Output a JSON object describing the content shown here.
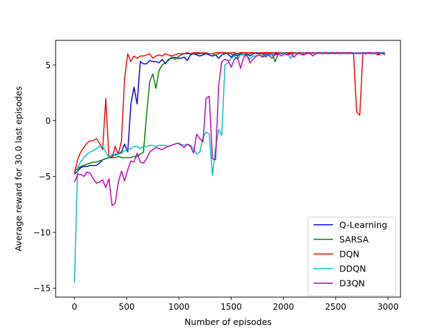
{
  "chart_data": {
    "type": "line",
    "title": "",
    "xlabel": "Number of episodes",
    "ylabel": "Average reward for 30.0 last episodes",
    "xlim": [
      -180,
      3120
    ],
    "ylim": [
      -15.8,
      7.2
    ],
    "xticks": [
      0,
      500,
      1000,
      1500,
      2000,
      2500,
      3000
    ],
    "yticks": [
      -15,
      -10,
      -5,
      0,
      5
    ],
    "yticklabels": [
      "−15",
      "−10",
      "−5",
      "0",
      "5"
    ],
    "grid": false,
    "legend_position": "lower-right",
    "series": [
      {
        "name": "Q-Learning",
        "color": "#0000ff",
        "x": [
          0,
          30,
          60,
          90,
          120,
          150,
          180,
          210,
          240,
          270,
          300,
          330,
          360,
          390,
          420,
          450,
          480,
          510,
          540,
          570,
          600,
          630,
          660,
          690,
          720,
          750,
          780,
          810,
          840,
          870,
          900,
          930,
          960,
          990,
          1020,
          1050,
          1080,
          1110,
          1140,
          1170,
          1200,
          1230,
          1260,
          1290,
          1320,
          1350,
          1380,
          1410,
          1440,
          1470,
          1500,
          1530,
          1560,
          1590,
          1620,
          1650,
          1680,
          1710,
          1740,
          1770,
          1800,
          1830,
          1860,
          1890,
          1920,
          1950,
          1980,
          2010,
          2040,
          2070,
          2100,
          2130,
          2160,
          2190,
          2220,
          2250,
          2280,
          2310,
          2340,
          2370,
          2400,
          2430,
          2460,
          2490,
          2520,
          2550,
          2580,
          2610,
          2640,
          2670,
          2700,
          2730,
          2760,
          2790,
          2820,
          2850,
          2880,
          2910,
          2940,
          2970
        ],
        "y": [
          -4.8,
          -4.5,
          -4.2,
          -4.1,
          -4.1,
          -4.0,
          -4.0,
          -4.0,
          -3.8,
          -3.5,
          -3.4,
          -3.3,
          -3.2,
          -3.0,
          -3.0,
          -2.8,
          -2.1,
          -2.8,
          1.5,
          3.0,
          1.5,
          5.3,
          5.1,
          5.1,
          5.4,
          5.3,
          5.3,
          5.2,
          5.5,
          5.1,
          5.5,
          5.6,
          5.7,
          5.6,
          5.6,
          5.7,
          5.4,
          5.9,
          6.0,
          5.9,
          5.8,
          5.9,
          6.0,
          5.9,
          5.8,
          5.9,
          5.6,
          5.9,
          6.0,
          6.0,
          5.7,
          6.0,
          5.8,
          6.0,
          5.9,
          6.0,
          5.8,
          6.0,
          6.1,
          6.0,
          6.0,
          6.0,
          6.1,
          5.9,
          6.0,
          6.1,
          6.0,
          6.1,
          6.0,
          6.1,
          6.0,
          6.1,
          6.0,
          6.1,
          6.0,
          6.1,
          6.0,
          6.1,
          6.0,
          6.1,
          6.0,
          6.1,
          6.0,
          6.1,
          6.0,
          6.1,
          6.0,
          6.1,
          6.0,
          6.1,
          6.0,
          6.1,
          6.0,
          6.1,
          6.0,
          6.1,
          6.0,
          6.1,
          6.1,
          5.9
        ]
      },
      {
        "name": "SARSA",
        "color": "#008000",
        "x": [
          0,
          30,
          60,
          90,
          120,
          150,
          180,
          210,
          240,
          270,
          300,
          330,
          360,
          390,
          420,
          450,
          480,
          510,
          540,
          570,
          600,
          630,
          660,
          690,
          720,
          750,
          780,
          810,
          840,
          870,
          900,
          930,
          960,
          990,
          1020,
          1050,
          1080,
          1110,
          1140,
          1170,
          1200,
          1230,
          1260,
          1290,
          1320,
          1350,
          1380,
          1410,
          1440,
          1470,
          1500,
          1530,
          1560,
          1590,
          1620,
          1650,
          1680,
          1710,
          1740,
          1770,
          1800,
          1830,
          1860,
          1890,
          1920,
          1950,
          1980,
          2010,
          2040,
          2070,
          2100,
          2130,
          2160,
          2190,
          2220,
          2250,
          2280,
          2310,
          2340,
          2370,
          2400,
          2430,
          2460,
          2490,
          2520,
          2550,
          2580,
          2610,
          2640,
          2670,
          2700,
          2730,
          2760,
          2790,
          2820,
          2850,
          2880,
          2910,
          2940,
          2970
        ],
        "y": [
          -4.5,
          -4.3,
          -4.1,
          -4.0,
          -3.9,
          -3.8,
          -3.7,
          -3.7,
          -3.6,
          -3.5,
          -3.4,
          -3.3,
          -3.3,
          -3.3,
          -3.2,
          -3.3,
          -3.3,
          -3.3,
          -3.3,
          -3.2,
          -3.2,
          -3.0,
          -2.8,
          0.5,
          3.5,
          4.2,
          2.9,
          4.5,
          5.0,
          5.2,
          5.4,
          5.7,
          5.5,
          5.7,
          5.9,
          6.0,
          6.0,
          6.0,
          6.0,
          6.0,
          6.0,
          6.1,
          6.0,
          6.0,
          6.0,
          5.9,
          6.0,
          6.1,
          6.0,
          6.1,
          6.0,
          5.8,
          6.0,
          6.0,
          6.1,
          5.9,
          6.0,
          6.1,
          6.0,
          6.0,
          6.0,
          5.7,
          6.0,
          6.1,
          5.3,
          6.0,
          6.1,
          6.0,
          6.1,
          6.0,
          6.1,
          6.0,
          6.1,
          6.0,
          6.1,
          6.0,
          6.1,
          6.0,
          6.1,
          6.0,
          6.1,
          6.0,
          6.1,
          6.0,
          6.1,
          6.0,
          6.1,
          6.0,
          6.1,
          6.0,
          6.1,
          6.0,
          6.1,
          6.0,
          6.1,
          6.0,
          6.1,
          6.0,
          6.1,
          6.1
        ]
      },
      {
        "name": "DQN",
        "color": "#ff0000",
        "x": [
          0,
          30,
          60,
          90,
          120,
          150,
          180,
          210,
          240,
          270,
          300,
          330,
          360,
          390,
          420,
          450,
          480,
          510,
          540,
          570,
          600,
          630,
          660,
          690,
          720,
          750,
          780,
          810,
          840,
          870,
          900,
          930,
          960,
          990,
          1020,
          1050,
          1080,
          1110,
          1140,
          1170,
          1200,
          1230,
          1260,
          1290,
          1320,
          1350,
          1380,
          1410,
          1440,
          1470,
          1500,
          1530,
          1560,
          1590,
          1620,
          1650,
          1680,
          1710,
          1740,
          1770,
          1800,
          1830,
          1860,
          1890,
          1920,
          1950,
          1980,
          2010,
          2040,
          2070,
          2100,
          2130,
          2160,
          2190,
          2220,
          2250,
          2280,
          2310,
          2340,
          2370,
          2400,
          2430,
          2460,
          2490,
          2520,
          2550,
          2580,
          2610,
          2640,
          2670,
          2700,
          2730,
          2760,
          2790,
          2820,
          2850,
          2880,
          2910,
          2940,
          2970
        ],
        "y": [
          -4.7,
          -3.5,
          -2.8,
          -2.4,
          -2.0,
          -1.8,
          -1.8,
          -1.6,
          -2.0,
          -2.6,
          2.0,
          -3.3,
          -3.3,
          -2.3,
          -3.0,
          -1.8,
          3.8,
          6.0,
          5.3,
          5.8,
          5.6,
          5.8,
          5.8,
          5.9,
          6.0,
          5.6,
          5.8,
          5.9,
          5.8,
          6.0,
          5.9,
          5.8,
          5.9,
          6.0,
          6.0,
          6.0,
          6.1,
          6.0,
          6.1,
          6.1,
          6.1,
          6.0,
          6.1,
          6.0,
          6.0,
          6.1,
          6.1,
          6.1,
          6.1,
          6.0,
          6.1,
          6.1,
          6.0,
          6.1,
          6.1,
          6.1,
          6.1,
          6.1,
          6.0,
          6.1,
          6.1,
          6.1,
          6.1,
          6.1,
          6.1,
          6.1,
          6.1,
          6.1,
          6.1,
          6.1,
          6.1,
          6.1,
          6.1,
          6.1,
          6.1,
          6.1,
          6.1,
          6.1,
          6.1,
          6.1,
          6.1,
          6.1,
          6.1,
          6.1,
          6.1,
          6.1,
          6.1,
          6.1,
          6.1,
          6.1,
          0.8,
          0.5,
          6.1,
          6.1,
          6.1,
          6.1,
          6.0,
          5.9,
          6.1,
          6.1
        ]
      },
      {
        "name": "DDQN",
        "color": "#00bfbf",
        "x": [
          0,
          30,
          60,
          90,
          120,
          150,
          180,
          210,
          240,
          270,
          300,
          330,
          360,
          390,
          420,
          450,
          480,
          510,
          540,
          570,
          600,
          630,
          660,
          690,
          720,
          750,
          780,
          810,
          840,
          870,
          900,
          930,
          960,
          990,
          1020,
          1050,
          1080,
          1110,
          1140,
          1170,
          1200,
          1230,
          1260,
          1290,
          1320,
          1350,
          1380,
          1410,
          1440,
          1470,
          1500,
          1530,
          1560,
          1590,
          1620,
          1650,
          1680,
          1710,
          1740,
          1770,
          1800,
          1830,
          1860,
          1890,
          1920,
          1950,
          1980,
          2010,
          2040,
          2070,
          2100,
          2130,
          2160,
          2190,
          2220,
          2250,
          2280,
          2310,
          2340,
          2370,
          2400,
          2430,
          2460,
          2490,
          2520,
          2550,
          2580,
          2610,
          2640,
          2670,
          2700,
          2730,
          2760,
          2790,
          2820,
          2850,
          2880,
          2910,
          2940,
          2970
        ],
        "y": [
          -14.5,
          -4.2,
          -3.7,
          -3.3,
          -3.0,
          -2.8,
          -2.7,
          -2.5,
          -2.3,
          -2.3,
          -2.8,
          -3.3,
          -3.0,
          -3.1,
          -3.0,
          -2.9,
          -2.7,
          -2.6,
          -2.5,
          -2.3,
          -2.3,
          -2.5,
          -2.3,
          -2.3,
          -2.2,
          -2.2,
          -2.3,
          -2.2,
          -2.2,
          -2.2,
          -2.3,
          -2.2,
          -2.1,
          -2.0,
          -2.1,
          -2.2,
          -2.1,
          -2.2,
          -2.5,
          -3.0,
          -2.8,
          -1.5,
          -1.0,
          -1.2,
          -4.9,
          -2.5,
          -0.8,
          -1.3,
          5.0,
          5.2,
          5.6,
          5.8,
          5.5,
          5.9,
          5.9,
          5.8,
          5.5,
          5.8,
          5.8,
          5.9,
          5.8,
          6.0,
          5.8,
          6.0,
          5.9,
          6.0,
          6.1,
          6.1,
          6.0,
          5.6,
          6.0,
          6.1,
          6.0,
          6.1,
          6.0,
          6.1,
          6.0,
          6.1,
          6.0,
          6.1,
          6.0,
          6.1,
          6.0,
          6.1,
          6.0,
          6.1,
          6.0,
          6.1,
          6.0,
          6.1,
          6.0,
          6.1,
          6.0,
          6.1,
          6.0,
          6.1,
          6.0,
          6.1,
          6.1,
          6.0
        ]
      },
      {
        "name": "D3QN",
        "color": "#bf00bf",
        "x": [
          0,
          30,
          60,
          90,
          120,
          150,
          180,
          210,
          240,
          270,
          300,
          330,
          360,
          390,
          420,
          450,
          480,
          510,
          540,
          570,
          600,
          630,
          660,
          690,
          720,
          750,
          780,
          810,
          840,
          870,
          900,
          930,
          960,
          990,
          1020,
          1050,
          1080,
          1110,
          1140,
          1170,
          1200,
          1230,
          1260,
          1290,
          1320,
          1350,
          1380,
          1410,
          1440,
          1470,
          1500,
          1530,
          1560,
          1590,
          1620,
          1650,
          1680,
          1710,
          1740,
          1770,
          1800,
          1830,
          1860,
          1890,
          1920,
          1950,
          1980,
          2010,
          2040,
          2070,
          2100,
          2130,
          2160,
          2190,
          2220,
          2250,
          2280,
          2310,
          2340,
          2370,
          2400,
          2430,
          2460,
          2490,
          2520,
          2550,
          2580,
          2610,
          2640,
          2670,
          2700,
          2730,
          2760,
          2790,
          2820,
          2850,
          2880,
          2910,
          2940,
          2970
        ],
        "y": [
          -5.5,
          -4.8,
          -4.8,
          -5.0,
          -4.6,
          -4.7,
          -5.2,
          -5.6,
          -5.5,
          -5.3,
          -6.0,
          -5.2,
          -7.6,
          -7.4,
          -5.5,
          -4.5,
          -5.4,
          -4.4,
          -3.6,
          -3.7,
          -2.9,
          -3.7,
          -3.8,
          -3.4,
          -2.8,
          -2.6,
          -2.4,
          -2.5,
          -2.6,
          -2.4,
          -2.3,
          -2.2,
          -2.1,
          -2.0,
          -2.2,
          -2.4,
          -2.1,
          -2.3,
          -2.9,
          -1.2,
          -1.6,
          -1.9,
          2.0,
          2.2,
          -3.4,
          -3.5,
          3.2,
          5.3,
          5.5,
          5.4,
          4.8,
          5.5,
          5.7,
          4.7,
          5.7,
          5.9,
          5.2,
          5.5,
          5.8,
          5.9,
          5.7,
          5.9,
          5.9,
          5.6,
          5.9,
          6.0,
          5.8,
          6.0,
          5.9,
          6.0,
          5.7,
          6.0,
          6.0,
          5.9,
          6.0,
          6.1,
          5.8,
          6.0,
          6.1,
          6.0,
          6.1,
          6.0,
          6.1,
          6.0,
          6.1,
          6.0,
          6.1,
          6.0,
          6.1,
          6.0,
          6.1,
          6.0,
          6.1,
          6.0,
          6.1,
          6.0,
          6.1,
          6.1,
          6.0,
          6.1
        ]
      }
    ]
  }
}
